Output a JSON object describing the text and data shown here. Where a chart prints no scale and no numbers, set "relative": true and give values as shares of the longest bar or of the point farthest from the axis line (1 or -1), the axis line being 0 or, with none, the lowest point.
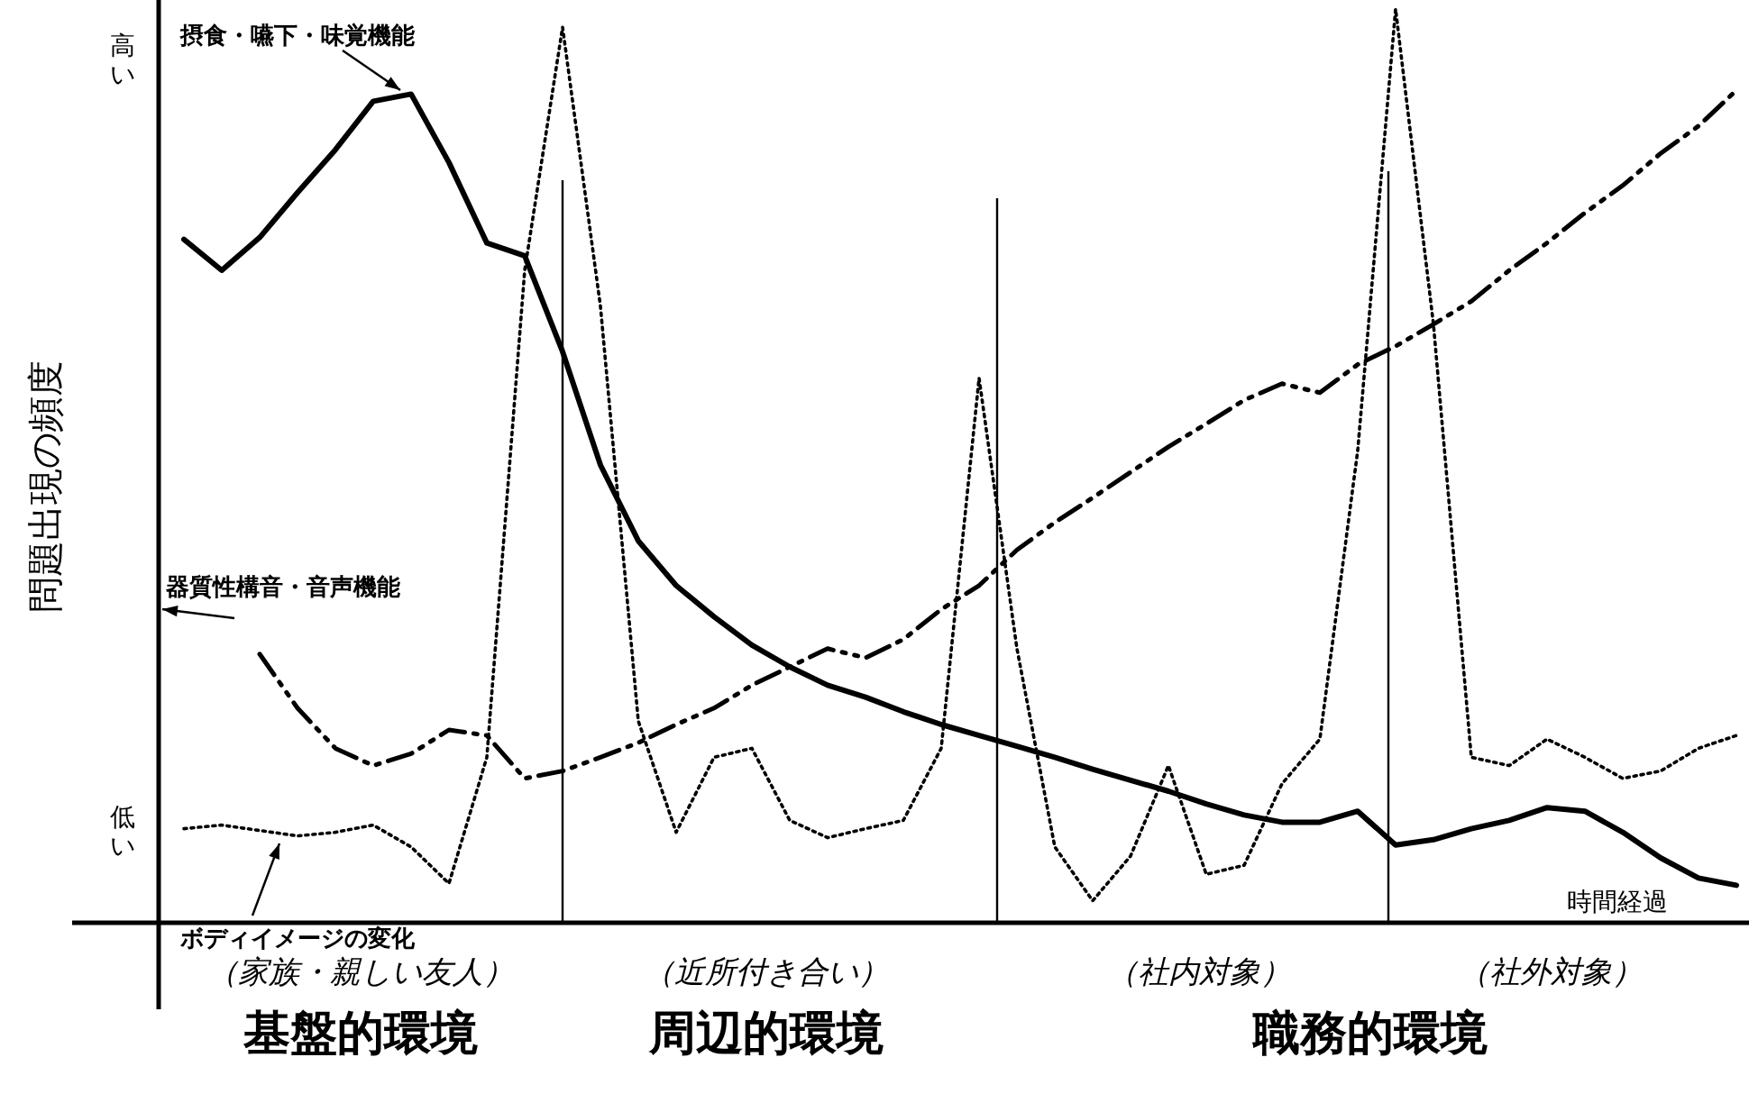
{
  "chart_data": {
    "type": "line",
    "relative": true,
    "xlabel": "時間経過",
    "ylabel": "問題出現の頻度",
    "categories": [
      null,
      null,
      null,
      null,
      null,
      null,
      null,
      null,
      null,
      null,
      null,
      null,
      null,
      null,
      null,
      null,
      null,
      null,
      null,
      null,
      null,
      null,
      null,
      null,
      null,
      null,
      null,
      null,
      null,
      null,
      null,
      null,
      null,
      null,
      null,
      null,
      null,
      null,
      null,
      null,
      null,
      null
    ],
    "series": [
      {
        "name": "摂食・嚥下・味覚機能",
        "color": "#000000",
        "line_style": "solid",
        "values": [
          0.748,
          0.714,
          0.75,
          0.799,
          0.846,
          0.899,
          0.907,
          0.832,
          0.744,
          0.73,
          0.625,
          0.501,
          0.418,
          0.369,
          0.335,
          0.304,
          0.28,
          0.26,
          0.247,
          0.231,
          0.217,
          0.205,
          0.193,
          0.181,
          0.168,
          0.156,
          0.144,
          0.13,
          0.118,
          0.11,
          0.11,
          0.122,
          0.085,
          0.091,
          0.103,
          0.112,
          0.126,
          0.122,
          0.099,
          0.071,
          0.049,
          0.041
        ]
      },
      {
        "name": "器質性構音・音声機能",
        "color": "#000000",
        "line_style": "dashed",
        "values": [
          null,
          null,
          0.294,
          0.235,
          0.191,
          0.172,
          0.185,
          0.211,
          0.205,
          0.158,
          0.166,
          0.181,
          0.197,
          0.217,
          0.235,
          0.26,
          0.28,
          0.3,
          0.29,
          0.31,
          0.343,
          0.369,
          0.408,
          0.438,
          0.465,
          0.493,
          0.521,
          0.546,
          0.572,
          0.59,
          0.58,
          0.611,
          0.631,
          0.655,
          0.68,
          0.714,
          0.744,
          0.777,
          0.807,
          0.842,
          0.872,
          0.911
        ]
      },
      {
        "name": "ボディイメージの変化",
        "color": "#000000",
        "line_style": "dotted",
        "values": [
          0.103,
          0.107,
          0.101,
          0.095,
          0.099,
          0.107,
          0.083,
          0.043,
          0.181,
          0.714,
          0.98,
          0.675,
          0.221,
          0.099,
          0.181,
          0.191,
          0.112,
          0.093,
          0.103,
          0.112,
          0.191,
          0.596,
          0.3,
          0.083,
          0.024,
          0.073,
          0.172,
          0.053,
          0.063,
          0.152,
          0.201,
          0.517,
          1,
          0.655,
          0.181,
          0.172,
          0.201,
          0.181,
          0.158,
          0.166,
          0.191,
          0.205
        ]
      }
    ],
    "annotations": [
      "高い",
      "低い",
      "（家族・親しい友人）",
      "基盤的環境",
      "（近所付き合い）",
      "周辺的環境",
      "（社内対象）",
      "（社外対象）",
      "職務的環境"
    ]
  }
}
